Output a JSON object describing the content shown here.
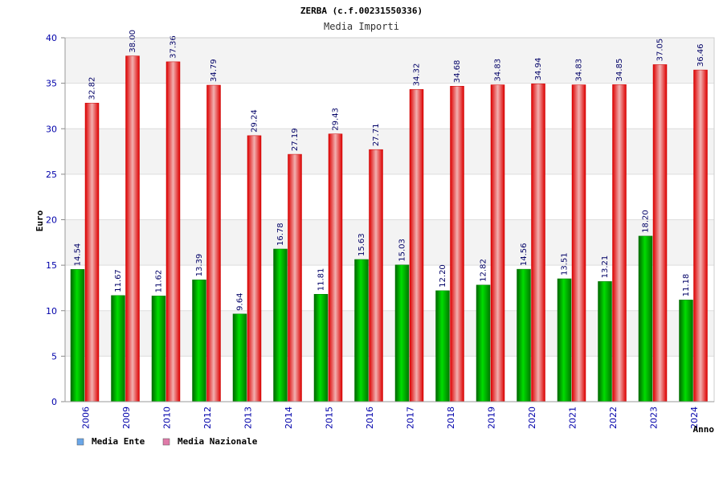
{
  "chart_data": {
    "type": "bar",
    "title": "ZERBA (c.f.00231550336)",
    "subtitle": "Media Importi",
    "ylabel": "Euro",
    "xlabel": "Anno",
    "ylim": [
      0,
      40
    ],
    "yticks": [
      "0",
      "5",
      "10",
      "15",
      "20",
      "25",
      "30",
      "35",
      "40"
    ],
    "categories": [
      "2006",
      "2009",
      "2010",
      "2012",
      "2013",
      "2014",
      "2015",
      "2016",
      "2017",
      "2018",
      "2019",
      "2020",
      "2021",
      "2022",
      "2023",
      "2024"
    ],
    "series": [
      {
        "name": "Media Ente",
        "color": "#00cc00",
        "values": [
          14.54,
          11.67,
          11.62,
          13.39,
          9.64,
          16.78,
          11.81,
          15.63,
          15.03,
          12.2,
          12.82,
          14.56,
          13.51,
          13.21,
          18.2,
          11.18
        ],
        "labels": [
          "14.54",
          "11.67",
          "11.62",
          "13.39",
          "9.64",
          "16.78",
          "11.81",
          "15.63",
          "15.03",
          "12.20",
          "12.82",
          "14.56",
          "13.51",
          "13.21",
          "18.20",
          "11.18"
        ]
      },
      {
        "name": "Media Nazionale",
        "color": "#ee0000",
        "values": [
          32.82,
          38.0,
          37.36,
          34.79,
          29.24,
          27.19,
          29.43,
          27.71,
          34.32,
          34.68,
          34.83,
          34.94,
          34.83,
          34.85,
          37.05,
          36.46
        ],
        "labels": [
          "32.82",
          "38.00",
          "37.36",
          "34.79",
          "29.24",
          "27.19",
          "29.43",
          "27.71",
          "34.32",
          "34.68",
          "34.83",
          "34.94",
          "34.83",
          "34.85",
          "37.05",
          "36.46"
        ]
      }
    ],
    "legend": [
      {
        "label": "Media Ente",
        "color": "#6aa6e8"
      },
      {
        "label": "Media Nazionale",
        "color": "#e07aa8"
      }
    ],
    "legend_position": "bottom-left"
  }
}
